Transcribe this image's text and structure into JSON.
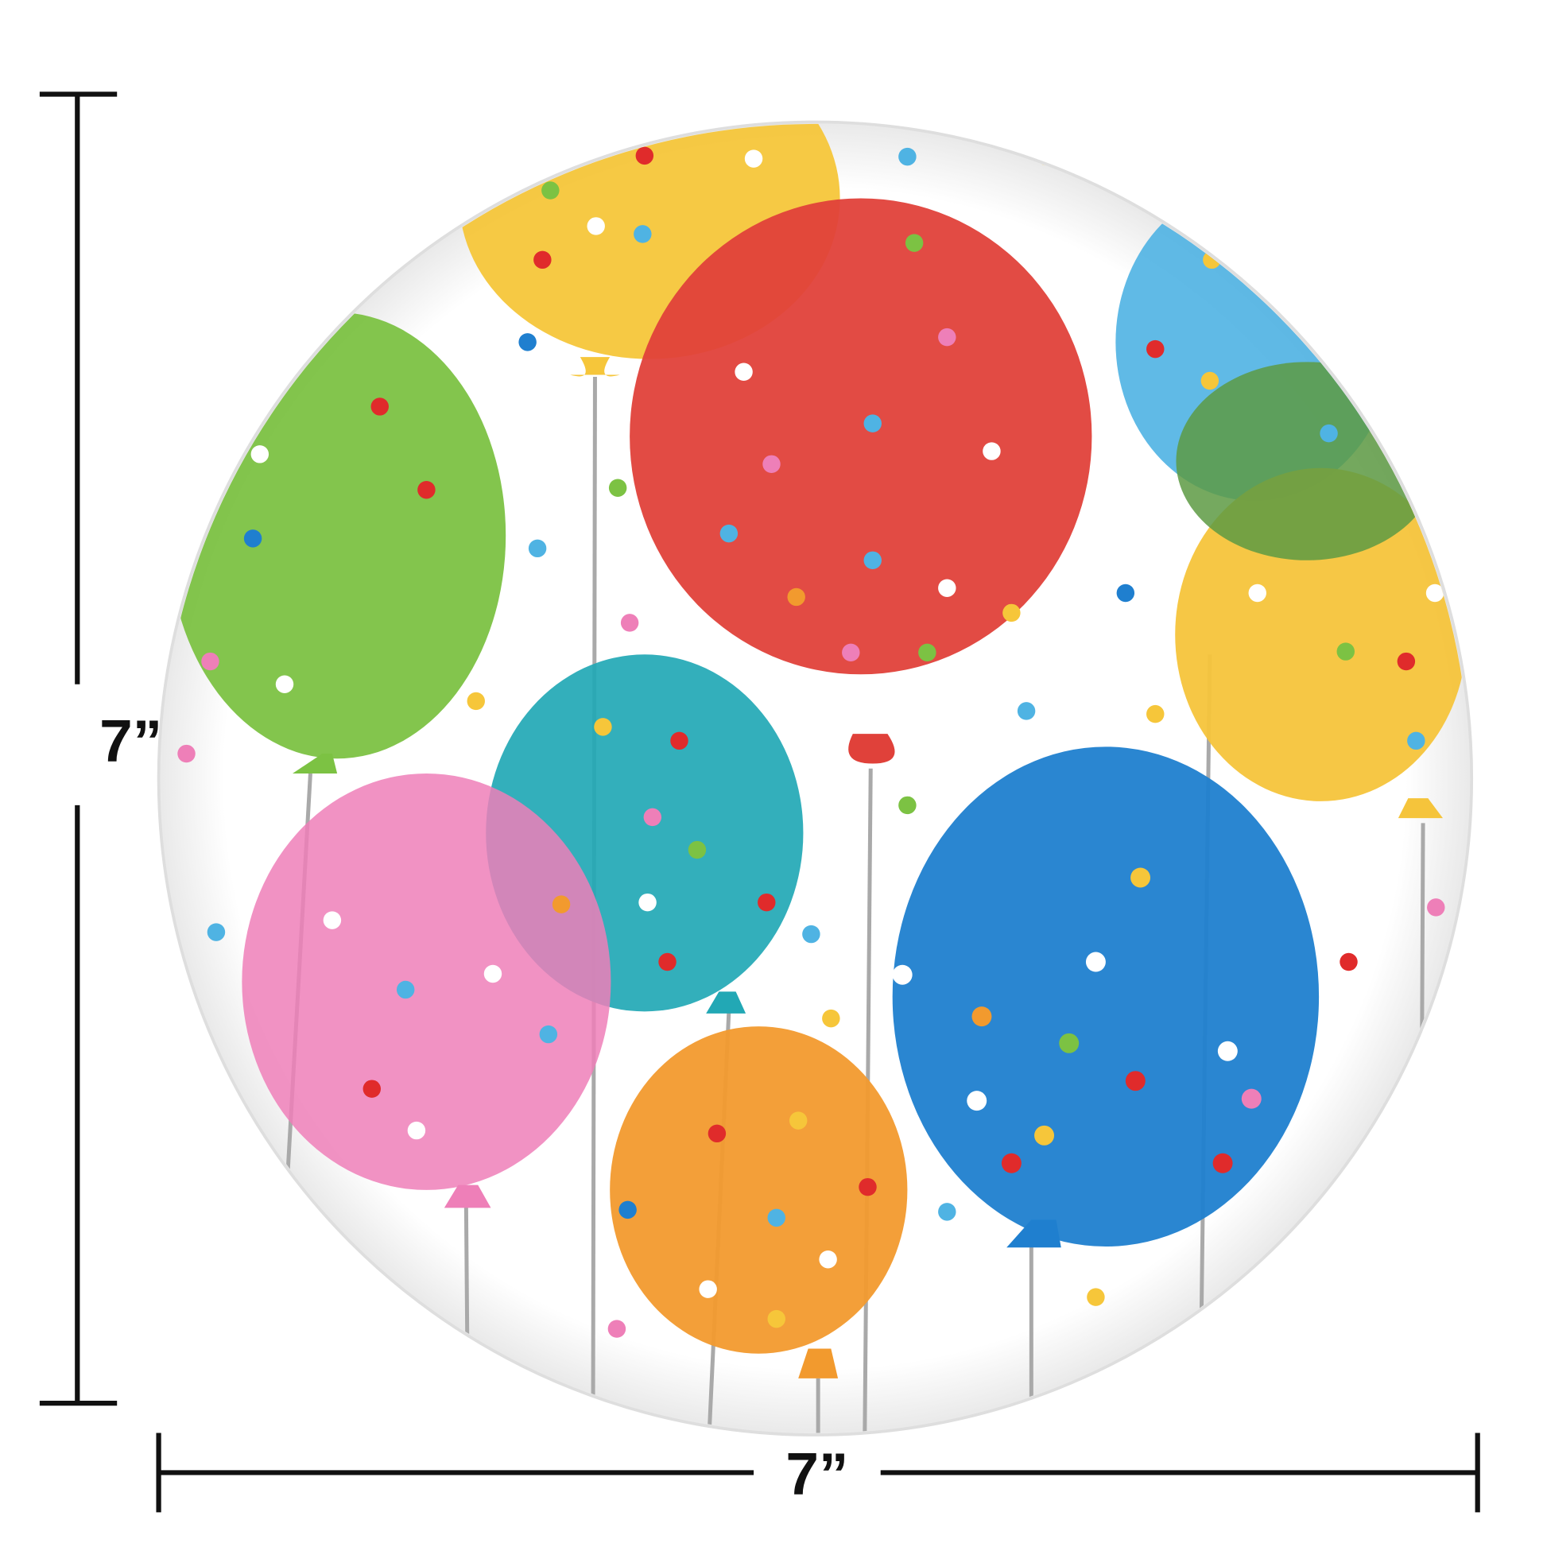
{
  "dimensions": {
    "height": "7”",
    "width": "7”"
  }
}
